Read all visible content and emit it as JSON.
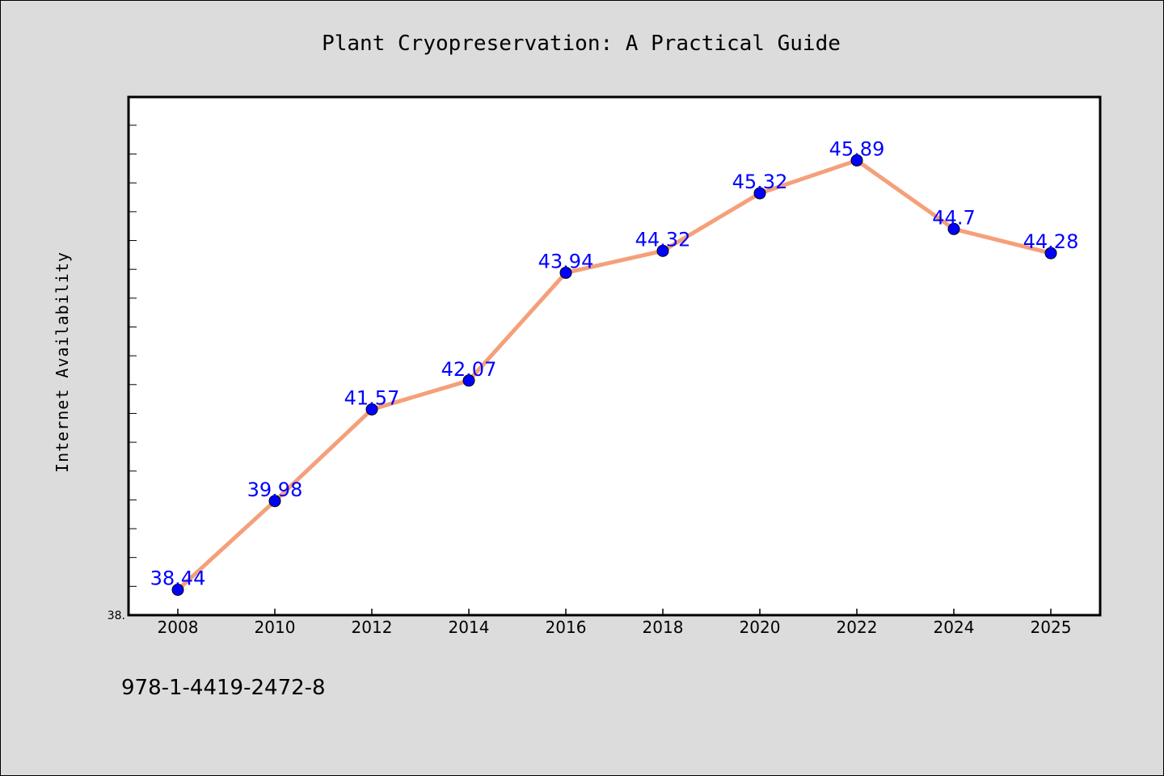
{
  "chart_data": {
    "type": "line",
    "title": "Plant Cryopreservation: A Practical Guide",
    "xlabel": "",
    "ylabel": "Internet Availability",
    "categories": [
      "2008",
      "2010",
      "2012",
      "2014",
      "2016",
      "2018",
      "2020",
      "2022",
      "2024",
      "2025"
    ],
    "series": [
      {
        "values": [
          38.44,
          39.98,
          41.57,
          42.07,
          43.94,
          44.32,
          45.32,
          45.89,
          44.7,
          44.28
        ]
      }
    ],
    "data_labels": [
      "38.44",
      "39.98",
      "41.57",
      "42.07",
      "43.94",
      "44.32",
      "45.32",
      "45.89",
      "44.7",
      "44.28"
    ],
    "ylim": [
      38.0,
      46.99
    ],
    "ytick_labels": [
      "38."
    ],
    "grid": false,
    "legend": false,
    "colors": {
      "line": "#f4a07a",
      "marker": "#0000ff",
      "label": "#0000ff",
      "background": "#dcdcdc",
      "plot_background": "#ffffff"
    }
  },
  "footer": {
    "isbn": "978-1-4419-2472-8"
  }
}
